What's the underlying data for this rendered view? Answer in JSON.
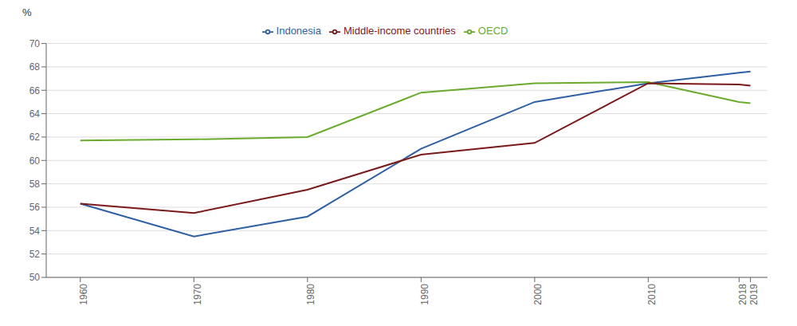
{
  "chart_data": {
    "type": "line",
    "ylabel": "%",
    "x": [
      1960,
      1970,
      1980,
      1990,
      2000,
      2010,
      2018,
      2019
    ],
    "series": [
      {
        "name": "Indonesia",
        "color": "#2E5FA3",
        "values": [
          56.3,
          53.5,
          55.2,
          61.0,
          65.0,
          66.6,
          67.5,
          67.6
        ]
      },
      {
        "name": "OECD",
        "color": "#6AAB2E",
        "values": [
          61.7,
          61.8,
          62.0,
          65.8,
          66.6,
          66.7,
          65.0,
          64.9
        ]
      },
      {
        "name": "Middle-income countries",
        "color": "#7B1A1A",
        "values": [
          56.3,
          55.5,
          57.5,
          60.5,
          61.5,
          66.6,
          66.5,
          66.4
        ]
      }
    ],
    "xlim": [
      1957,
      2020.5
    ],
    "xticks": [
      1960,
      1970,
      1980,
      1990,
      2000,
      2010,
      2018,
      2019
    ],
    "ylim": [
      50,
      70
    ],
    "yticks": [
      50,
      52,
      54,
      56,
      58,
      60,
      62,
      64,
      66,
      68,
      70
    ],
    "grid": true,
    "legend": "top"
  }
}
